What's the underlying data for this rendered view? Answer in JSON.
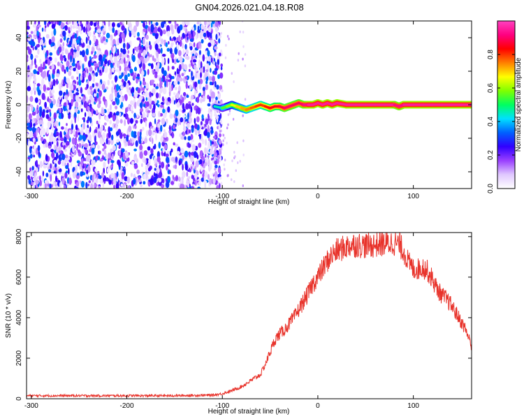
{
  "figure": {
    "title": "GN04.2026.021.04.18.R08"
  },
  "chart_data": [
    {
      "type": "heatmap",
      "name": "spectrogram",
      "xlabel": "Height of straight line (km)",
      "ylabel": "Frequency (Hz)",
      "xlim": [
        -305,
        161
      ],
      "ylim": [
        -50,
        50
      ],
      "xticks": [
        -300,
        -200,
        -100,
        0,
        100
      ],
      "yticks": [
        -40,
        -20,
        0,
        20,
        40
      ],
      "noise_region_x": [
        -305,
        -105
      ],
      "signal_region_x": [
        -105,
        161
      ],
      "ridge": {
        "x": [
          -108,
          -100,
          -95,
          -90,
          -85,
          -80,
          -75,
          -70,
          -65,
          -60,
          -55,
          -50,
          -45,
          -40,
          -35,
          -30,
          -25,
          -20,
          -15,
          -10,
          -5,
          0,
          5,
          10,
          15,
          20,
          30,
          40,
          50,
          60,
          70,
          80,
          85,
          90,
          100,
          110,
          120,
          130,
          140,
          150,
          161
        ],
        "freq": [
          -1,
          -2,
          -1,
          0,
          -1,
          -2,
          -3,
          -2,
          -1,
          0,
          -1,
          -2,
          -1,
          -1,
          -2,
          -1,
          0,
          1,
          0,
          0,
          0,
          1,
          0,
          1,
          0,
          1,
          0,
          0,
          0,
          0,
          0,
          0,
          -1,
          0,
          0,
          0,
          0,
          0,
          0,
          0,
          0
        ],
        "amplitude": [
          0.4,
          0.5,
          0.6,
          0.6,
          0.7,
          0.7,
          0.75,
          0.75,
          0.8,
          0.8,
          0.8,
          0.85,
          0.85,
          0.85,
          0.9,
          0.9,
          0.9,
          0.9,
          0.9,
          0.95,
          0.95,
          0.95,
          0.95,
          0.95,
          0.95,
          0.95,
          0.95,
          0.95,
          0.95,
          0.95,
          0.95,
          0.95,
          0.9,
          0.95,
          0.95,
          0.95,
          0.95,
          0.95,
          0.95,
          0.95,
          0.95
        ]
      }
    },
    {
      "type": "line",
      "name": "snr",
      "xlabel": "Height of straight line (km)",
      "ylabel": "SNR (10 * v/v)",
      "xlim": [
        -305,
        161
      ],
      "ylim": [
        0,
        8200
      ],
      "xticks": [
        -300,
        -200,
        -100,
        0,
        100
      ],
      "yticks": [
        0,
        2000,
        4000,
        6000,
        8000
      ],
      "color": "#e8332b",
      "x": [
        -305,
        -250,
        -200,
        -150,
        -110,
        -100,
        -90,
        -80,
        -70,
        -60,
        -55,
        -50,
        -45,
        -40,
        -35,
        -30,
        -25,
        -20,
        -15,
        -10,
        -5,
        0,
        5,
        10,
        15,
        20,
        25,
        30,
        35,
        40,
        50,
        60,
        70,
        80,
        85,
        90,
        95,
        100,
        105,
        110,
        115,
        120,
        125,
        130,
        135,
        140,
        145,
        150,
        155,
        161
      ],
      "y": [
        150,
        150,
        150,
        150,
        180,
        250,
        400,
        600,
        900,
        1200,
        1700,
        2300,
        2900,
        3200,
        3400,
        3700,
        4000,
        4400,
        4800,
        5200,
        5700,
        6000,
        6400,
        6800,
        7100,
        7300,
        7400,
        7500,
        7600,
        7600,
        7550,
        7600,
        7650,
        7700,
        7600,
        7300,
        6700,
        6400,
        6400,
        6500,
        6300,
        5900,
        5400,
        5100,
        4900,
        4600,
        4200,
        3800,
        3400,
        2600
      ]
    }
  ],
  "colorbar": {
    "label": "Normalized spectral amplitude",
    "ticks": [
      "0.0",
      "0.2",
      "0.4",
      "0.6",
      "0.8"
    ],
    "tick_values": [
      0.0,
      0.2,
      0.4,
      0.6,
      0.8
    ],
    "range": [
      0,
      1
    ],
    "colors": [
      "#ffffff",
      "#e0c8ff",
      "#9a40ff",
      "#3000ff",
      "#0060ff",
      "#00e0ff",
      "#00ff60",
      "#80ff00",
      "#ffff00",
      "#ff8000",
      "#ff0000",
      "#ff0080",
      "#ff40c0"
    ]
  }
}
